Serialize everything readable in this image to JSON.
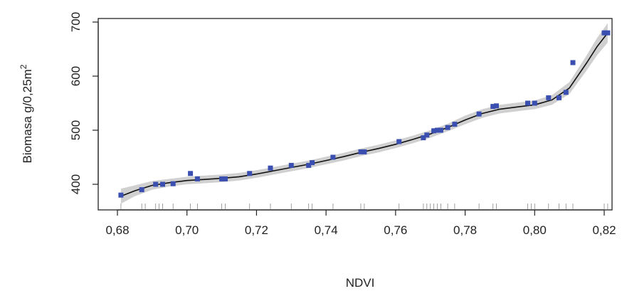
{
  "chart_data": {
    "type": "scatter",
    "xlabel": "NDVI",
    "ylabel_main": "Biomasa g/0,25m",
    "ylabel_sup": "2",
    "xlim": [
      0.68,
      0.82
    ],
    "ylim": [
      400,
      700
    ],
    "x_ticks": [
      0.68,
      0.7,
      0.72,
      0.74,
      0.76,
      0.78,
      0.8,
      0.82
    ],
    "x_tick_labels": [
      "0,68",
      "0,70",
      "0,72",
      "0,74",
      "0,76",
      "0,78",
      "0,80",
      "0,82"
    ],
    "y_ticks": [
      400,
      500,
      600,
      700
    ],
    "y_tick_labels": [
      "400",
      "500",
      "600",
      "700"
    ],
    "points_color": "#3a4fb0",
    "smooth_color": "#111111",
    "band_color": "#c8c8c8",
    "series": [
      {
        "values": [
          [
            0.681,
            380
          ],
          [
            0.687,
            390
          ],
          [
            0.691,
            400
          ],
          [
            0.693,
            400
          ],
          [
            0.696,
            401
          ],
          [
            0.701,
            420
          ],
          [
            0.703,
            410
          ],
          [
            0.71,
            410
          ],
          [
            0.711,
            410
          ],
          [
            0.718,
            420
          ],
          [
            0.724,
            430
          ],
          [
            0.73,
            435
          ],
          [
            0.735,
            435
          ],
          [
            0.736,
            440
          ],
          [
            0.742,
            450
          ],
          [
            0.75,
            460
          ],
          [
            0.751,
            460
          ],
          [
            0.761,
            479
          ],
          [
            0.768,
            486
          ],
          [
            0.769,
            491
          ],
          [
            0.771,
            499
          ],
          [
            0.772,
            500
          ],
          [
            0.773,
            500
          ],
          [
            0.775,
            505
          ],
          [
            0.777,
            511
          ],
          [
            0.784,
            530
          ],
          [
            0.788,
            544
          ],
          [
            0.789,
            545
          ],
          [
            0.798,
            550
          ],
          [
            0.8,
            550
          ],
          [
            0.804,
            560
          ],
          [
            0.807,
            560
          ],
          [
            0.809,
            570
          ],
          [
            0.811,
            625
          ],
          [
            0.82,
            680
          ],
          [
            0.821,
            680
          ]
        ]
      }
    ],
    "smooth_curve": [
      [
        0.681,
        378
      ],
      [
        0.685,
        388
      ],
      [
        0.69,
        398
      ],
      [
        0.695,
        403
      ],
      [
        0.7,
        407
      ],
      [
        0.705,
        409
      ],
      [
        0.71,
        411
      ],
      [
        0.715,
        414
      ],
      [
        0.72,
        419
      ],
      [
        0.725,
        425
      ],
      [
        0.73,
        431
      ],
      [
        0.735,
        437
      ],
      [
        0.74,
        444
      ],
      [
        0.745,
        451
      ],
      [
        0.75,
        459
      ],
      [
        0.755,
        466
      ],
      [
        0.76,
        474
      ],
      [
        0.765,
        483
      ],
      [
        0.77,
        493
      ],
      [
        0.775,
        505
      ],
      [
        0.78,
        519
      ],
      [
        0.785,
        531
      ],
      [
        0.79,
        539
      ],
      [
        0.795,
        543
      ],
      [
        0.8,
        547
      ],
      [
        0.805,
        556
      ],
      [
        0.81,
        578
      ],
      [
        0.815,
        625
      ],
      [
        0.818,
        655
      ],
      [
        0.821,
        680
      ]
    ],
    "band_width": [
      14,
      10,
      8,
      7,
      7,
      7,
      7,
      7,
      7,
      7,
      7,
      7,
      7,
      7,
      7,
      7,
      7,
      7,
      7,
      7,
      8,
      8,
      8,
      8,
      8,
      9,
      11,
      14,
      16,
      18
    ],
    "rug_x": [
      0.681,
      0.687,
      0.688,
      0.691,
      0.692,
      0.693,
      0.696,
      0.701,
      0.703,
      0.71,
      0.711,
      0.718,
      0.724,
      0.73,
      0.735,
      0.736,
      0.742,
      0.75,
      0.751,
      0.761,
      0.768,
      0.769,
      0.77,
      0.771,
      0.772,
      0.773,
      0.775,
      0.777,
      0.784,
      0.788,
      0.789,
      0.798,
      0.799,
      0.8,
      0.804,
      0.807,
      0.809,
      0.811,
      0.82,
      0.821
    ]
  }
}
